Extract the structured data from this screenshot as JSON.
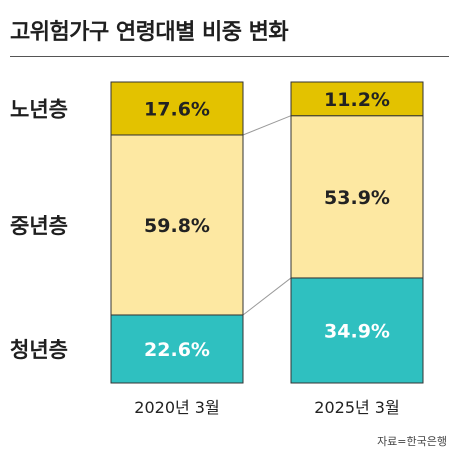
{
  "title": "고위험가구 연령대별 비중 변화",
  "source": "자료=한국은행",
  "colors": {
    "elderly": "#e3c200",
    "middle": "#fde8a2",
    "young": "#2fc0c0",
    "bar_border": "#333333",
    "connector": "#9a9a9a",
    "label_dark": "#222222",
    "label_light": "#ffffff"
  },
  "chart_data": {
    "type": "bar",
    "stacked": true,
    "percent": true,
    "categories": [
      "2020년 3월",
      "2025년 3월"
    ],
    "series": [
      {
        "name": "청년층",
        "values": [
          22.6,
          34.9
        ],
        "labels": [
          "22.6%",
          "34.9%"
        ],
        "color": "#2fc0c0",
        "label_color": "#ffffff"
      },
      {
        "name": "중년층",
        "values": [
          59.8,
          53.9
        ],
        "labels": [
          "59.8%",
          "53.9%"
        ],
        "color": "#fde8a2",
        "label_color": "#222222"
      },
      {
        "name": "노년층",
        "values": [
          17.6,
          11.2
        ],
        "labels": [
          "17.6%",
          "11.2%"
        ],
        "color": "#e3c200",
        "label_color": "#222222"
      }
    ],
    "ylim": [
      0,
      100
    ],
    "legend": "left",
    "grid": false
  }
}
